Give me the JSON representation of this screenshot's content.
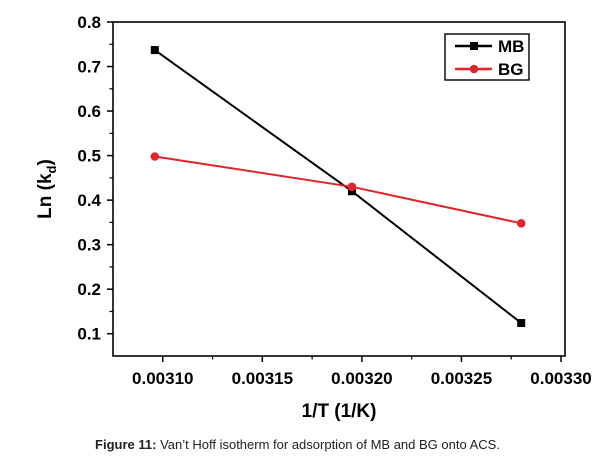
{
  "chart_data": {
    "type": "line",
    "title": "",
    "xlabel": "1/T (1/K)",
    "ylabel_main": "Ln (k",
    "ylabel_sub": "d",
    "ylabel_close": ")",
    "xlim": [
      0.003075,
      0.003302
    ],
    "ylim": [
      0.05,
      0.8
    ],
    "x_ticks": [
      0.0031,
      0.00315,
      0.0032,
      0.00325,
      0.0033
    ],
    "x_tick_labels": [
      "0.00310",
      "0.00315",
      "0.00320",
      "0.00325",
      "0.00330"
    ],
    "y_ticks": [
      0.1,
      0.2,
      0.3,
      0.4,
      0.5,
      0.6,
      0.7,
      0.8
    ],
    "y_tick_labels": [
      "0.1",
      "0.2",
      "0.3",
      "0.4",
      "0.5",
      "0.6",
      "0.7",
      "0.8"
    ],
    "grid": false,
    "legend_position": "top-right",
    "series": [
      {
        "name": "MB",
        "color": "#000000",
        "marker": "square",
        "x": [
          0.003096,
          0.003195,
          0.00328
        ],
        "y": [
          0.737,
          0.42,
          0.124
        ]
      },
      {
        "name": "BG",
        "color": "#e0262a",
        "marker": "circle",
        "x": [
          0.003096,
          0.003195,
          0.00328
        ],
        "y": [
          0.498,
          0.43,
          0.348
        ]
      }
    ]
  },
  "caption": {
    "label": "Figure 11:",
    "text": " Van’t Hoff isotherm for adsorption of MB and BG onto ACS."
  }
}
